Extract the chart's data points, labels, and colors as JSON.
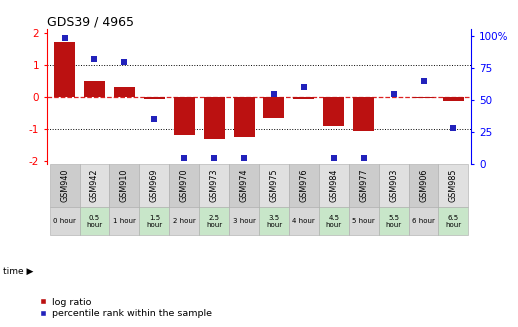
{
  "title": "GDS39 / 4965",
  "samples": [
    "GSM940",
    "GSM942",
    "GSM910",
    "GSM969",
    "GSM970",
    "GSM973",
    "GSM974",
    "GSM975",
    "GSM976",
    "GSM984",
    "GSM977",
    "GSM903",
    "GSM906",
    "GSM985"
  ],
  "time_labels": [
    "0 hour",
    "0.5\nhour",
    "1 hour",
    "1.5\nhour",
    "2 hour",
    "2.5\nhour",
    "3 hour",
    "3.5\nhour",
    "4 hour",
    "4.5\nhour",
    "5 hour",
    "5.5\nhour",
    "6 hour",
    "6.5\nhour"
  ],
  "time_colors_odd": "#c8e6c9",
  "time_colors_even": "#d8d8d8",
  "sample_colors_odd": "#e0e0e0",
  "sample_colors_even": "#cccccc",
  "log_ratio": [
    1.7,
    0.5,
    0.3,
    -0.08,
    -1.2,
    -1.3,
    -1.25,
    -0.65,
    -0.07,
    -0.9,
    -1.05,
    -0.02,
    -0.04,
    -0.12
  ],
  "percentile": [
    98,
    82,
    80,
    35,
    5,
    5,
    5,
    55,
    60,
    5,
    5,
    55,
    65,
    28
  ],
  "ylim_left": [
    -2.1,
    2.1
  ],
  "ylim_right": [
    0,
    105
  ],
  "bar_color": "#bb1111",
  "dot_color": "#2222bb",
  "ref_line_color": "#dd2222",
  "bg_color": "#ffffff",
  "legend_red": "log ratio",
  "legend_blue": "percentile rank within the sample",
  "right_tick_labels": [
    "0",
    "25",
    "50",
    "75",
    "100%"
  ],
  "right_ticks": [
    0,
    25,
    50,
    75,
    100
  ],
  "left_ticks": [
    -2,
    -1,
    0,
    1,
    2
  ],
  "left_tick_labels": [
    "-2",
    "-1",
    "0",
    "1",
    "2"
  ]
}
